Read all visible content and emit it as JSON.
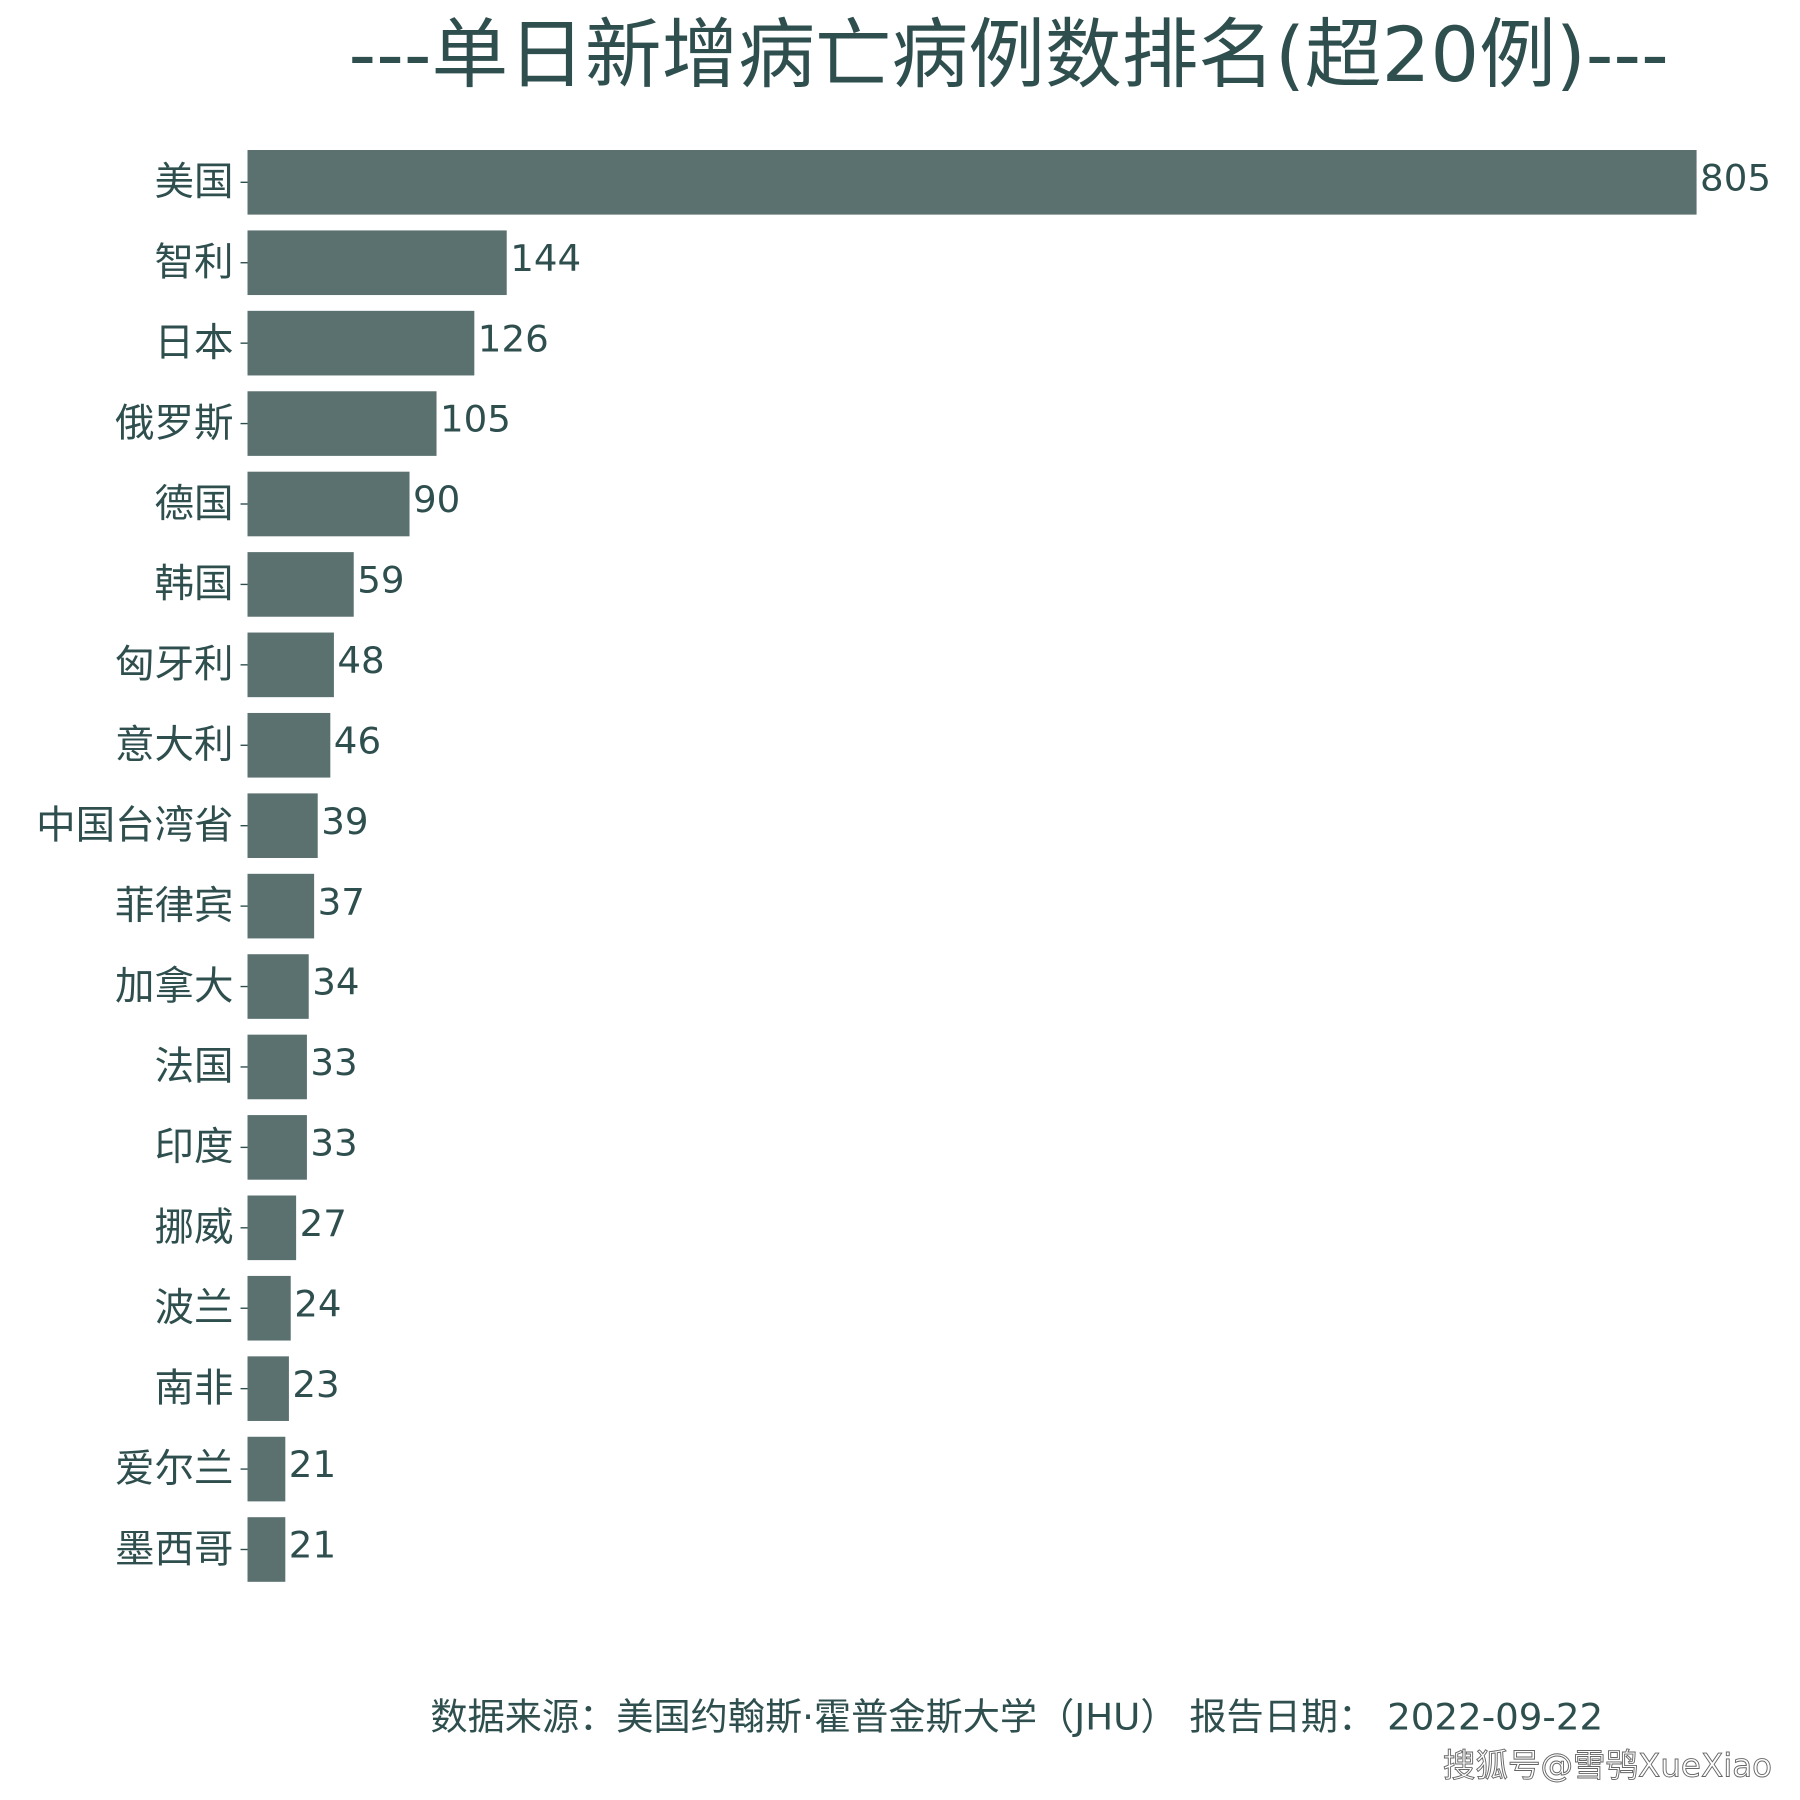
{
  "chart_data": {
    "type": "barh",
    "title": "---单日新增病亡病例数排名(超20例)---",
    "categories": [
      "美国",
      "智利",
      "日本",
      "俄罗斯",
      "德国",
      "韩国",
      "匈牙利",
      "意大利",
      "中国台湾省",
      "菲律宾",
      "加拿大",
      "法国",
      "印度",
      "挪威",
      "波兰",
      "南非",
      "爱尔兰",
      "墨西哥"
    ],
    "values": [
      805,
      144,
      126,
      105,
      90,
      59,
      48,
      46,
      39,
      37,
      34,
      33,
      33,
      27,
      24,
      23,
      21,
      21
    ],
    "color": "#5a7170",
    "source": "数据来源：美国约翰斯·霍普金斯大学（JHU） 报告日期： 2022-09-22",
    "watermark": "搜狐号@雪鸮XueXiao"
  }
}
